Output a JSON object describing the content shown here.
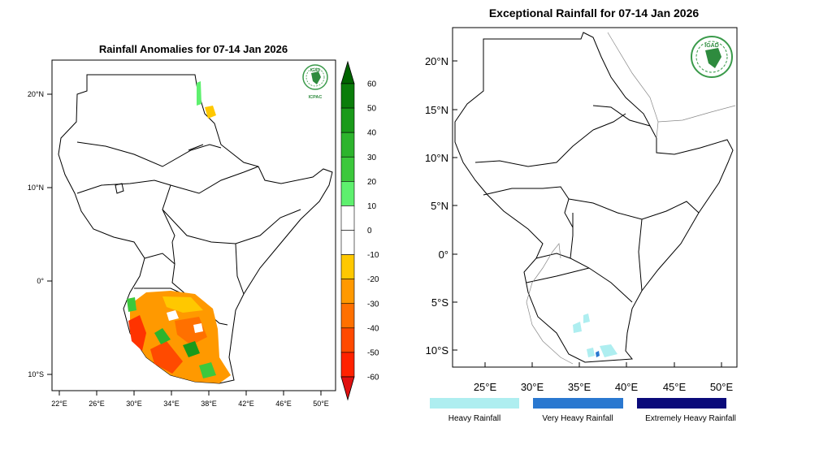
{
  "left_map": {
    "title": "Rainfall Anomalies for 07-14 Jan 2026",
    "lat_labels": [
      "20°N",
      "10°N",
      "0°",
      "10°S"
    ],
    "lon_labels": [
      "22°E",
      "26°E",
      "30°E",
      "34°E",
      "38°E",
      "42°E",
      "46°E",
      "50°E"
    ],
    "logo_text": "IGAD",
    "logo_sub": "ICPAC",
    "colorbar": {
      "labels": [
        "60",
        "50",
        "40",
        "30",
        "20",
        "10",
        "0",
        "-10",
        "-20",
        "-30",
        "-40",
        "-50",
        "-60"
      ],
      "colors": [
        "#006400",
        "#0a7d0a",
        "#1a9a1a",
        "#2db42d",
        "#3cc83c",
        "#5ef06e",
        "#ffffff",
        "#ffffff",
        "#ffc800",
        "#ff9900",
        "#ff7000",
        "#ff4a00",
        "#ff2200",
        "#e01010"
      ]
    }
  },
  "right_map": {
    "title": "Exceptional Rainfall for 07-14 Jan 2026",
    "lat_labels": [
      "20°N",
      "15°N",
      "10°N",
      "5°N",
      "0°",
      "5°S",
      "10°S"
    ],
    "lon_labels": [
      "25°E",
      "30°E",
      "35°E",
      "40°E",
      "45°E",
      "50°E"
    ],
    "logo_text": "IGAD",
    "legend": [
      {
        "label": "Heavy Rainfall",
        "color": "#aeeef0"
      },
      {
        "label": "Very Heavy Rainfall",
        "color": "#2a78d0"
      },
      {
        "label": "Extremely Heavy Rainfall",
        "color": "#0a0a7a"
      }
    ]
  }
}
